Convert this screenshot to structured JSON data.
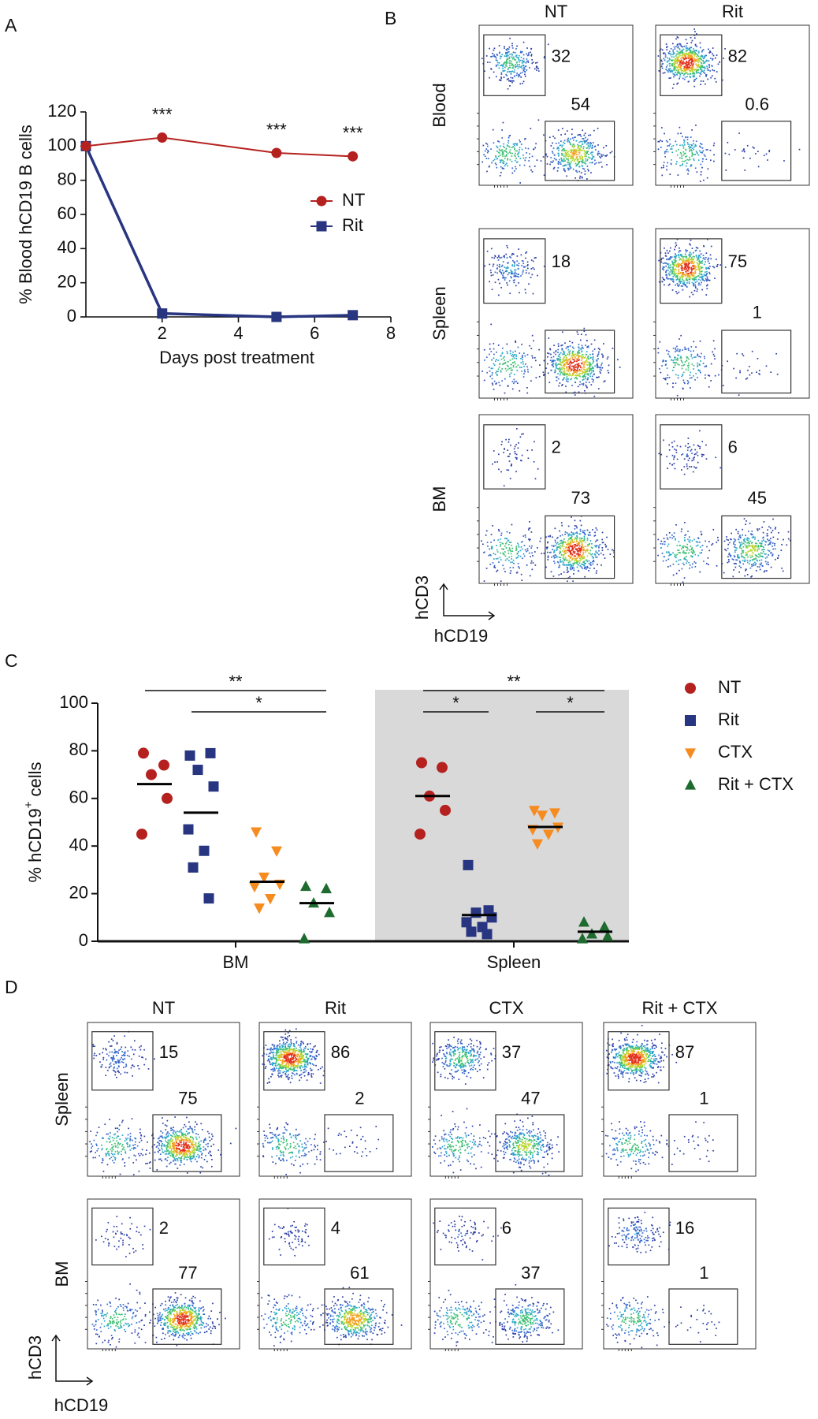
{
  "panel_labels": [
    "A",
    "B",
    "C",
    "D"
  ],
  "chart_data": [
    {
      "type": "line",
      "ylabel": "% Blood hCD19 B cells",
      "xlabel": "Days post treatment",
      "x": [
        0,
        2,
        5,
        7
      ],
      "series": [
        {
          "name": "NT",
          "color": "#b5211f",
          "marker": "circle",
          "values": [
            100,
            105,
            96,
            94
          ]
        },
        {
          "name": "Rit",
          "color": "#283580",
          "marker": "square",
          "values": [
            100,
            2,
            0,
            1
          ]
        }
      ],
      "significance": [
        null,
        "***",
        "***",
        "***"
      ],
      "xlim": [
        0,
        8
      ],
      "xticks": [
        2,
        4,
        6,
        8
      ],
      "ylim": [
        0,
        120
      ],
      "yticks": [
        0,
        20,
        40,
        60,
        80,
        100,
        120
      ],
      "legend": "right"
    },
    {
      "type": "dot",
      "ylabel": "% hCD19",
      "ylabel_superscript": "+",
      "ylabel_suffix": " cells",
      "categories": [
        "BM",
        "Spleen"
      ],
      "series": [
        {
          "name": "NT",
          "color": "#b5211f",
          "marker": "circle",
          "values": [
            [
              79,
              74,
              70,
              60,
              45
            ],
            [
              75,
              73,
              61,
              55,
              45
            ]
          ],
          "means": [
            66,
            61
          ]
        },
        {
          "name": "Rit",
          "color": "#283580",
          "marker": "square",
          "values": [
            [
              78,
              79,
              72,
              65,
              47,
              38,
              31,
              18
            ],
            [
              32,
              13,
              12,
              10,
              8,
              6,
              4,
              3
            ]
          ],
          "means": [
            54,
            11
          ]
        },
        {
          "name": "CTX",
          "color": "#f68b1f",
          "marker": "triangle-down",
          "values": [
            [
              46,
              38,
              27,
              24,
              23,
              18,
              14
            ],
            [
              55,
              54,
              53,
              48,
              47,
              45,
              41
            ]
          ],
          "means": [
            25,
            48
          ]
        },
        {
          "name": "Rit + CTX",
          "color": "#1e6b30",
          "marker": "triangle-up",
          "values": [
            [
              23,
              22,
              16,
              12,
              1
            ],
            [
              8,
              6,
              3,
              2,
              1
            ]
          ],
          "means": [
            16,
            4
          ]
        }
      ],
      "brackets": [
        {
          "category": 0,
          "from": 0,
          "to": 3,
          "label": "**"
        },
        {
          "category": 0,
          "from": 1,
          "to": 3,
          "label": "*"
        },
        {
          "category": 1,
          "from": 0,
          "to": 3,
          "label": "**"
        },
        {
          "category": 1,
          "from": 0,
          "to": 1,
          "label": "*"
        },
        {
          "category": 1,
          "from": 2,
          "to": 3,
          "label": "*"
        }
      ],
      "shaded_categories": [
        1
      ],
      "ylim": [
        0,
        100
      ],
      "yticks": [
        0,
        20,
        40,
        60,
        80,
        100
      ],
      "legend": "right"
    }
  ],
  "flow_b": {
    "columns": [
      "NT",
      "Rit"
    ],
    "rows": [
      {
        "label": "Blood",
        "gates": [
          [
            32,
            54
          ],
          [
            82,
            0.6
          ]
        ]
      },
      {
        "label": "Spleen",
        "gates": [
          [
            18,
            null
          ],
          [
            75,
            1
          ]
        ]
      },
      {
        "label": "BM",
        "gates": [
          [
            2,
            73
          ],
          [
            6,
            45
          ]
        ]
      }
    ],
    "y_axis": "hCD3",
    "x_axis": "hCD19"
  },
  "flow_d": {
    "columns": [
      "NT",
      "Rit",
      "CTX",
      "Rit + CTX"
    ],
    "rows": [
      {
        "label": "Spleen",
        "gates": [
          [
            15,
            75
          ],
          [
            86,
            2
          ],
          [
            37,
            47
          ],
          [
            87,
            1
          ]
        ]
      },
      {
        "label": "BM",
        "gates": [
          [
            2,
            77
          ],
          [
            4,
            61
          ],
          [
            6,
            37
          ],
          [
            16,
            1
          ]
        ]
      }
    ],
    "y_axis": "hCD3",
    "x_axis": "hCD19"
  }
}
